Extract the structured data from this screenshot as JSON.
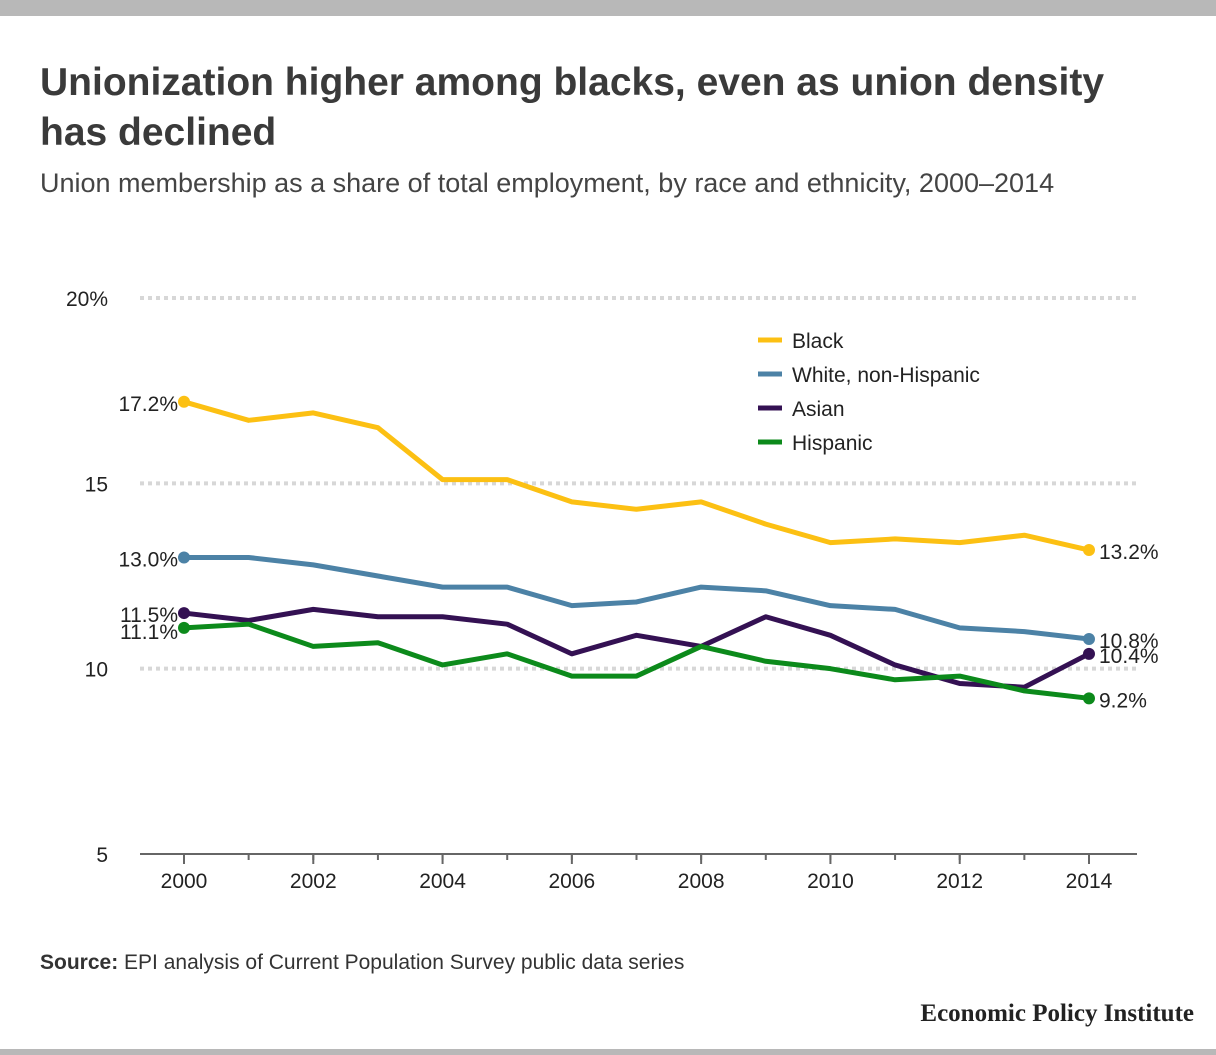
{
  "title": "Unionization higher among blacks, even as union density has declined",
  "subtitle": "Union membership as a share of total employment, by race and ethnicity, 2000–2014",
  "source_label": "Source:",
  "source_text": "EPI analysis of Current Population Survey public data series",
  "brand": "Economic Policy Institute",
  "chart_data": {
    "type": "line",
    "title": "Unionization higher among blacks, even as union density has declined",
    "subtitle": "Union membership as a share of total employment, by race and ethnicity, 2000–2014",
    "x": [
      2000,
      2001,
      2002,
      2003,
      2004,
      2005,
      2006,
      2007,
      2008,
      2009,
      2010,
      2011,
      2012,
      2013,
      2014
    ],
    "xlim": [
      2000,
      2014
    ],
    "x_ticks": [
      "2000",
      "2002",
      "2004",
      "2006",
      "2008",
      "2010",
      "2012",
      "2014"
    ],
    "ylim": [
      5,
      20
    ],
    "y_ticks": [
      {
        "value": 5,
        "label": "5"
      },
      {
        "value": 10,
        "label": "10"
      },
      {
        "value": 15,
        "label": "15"
      },
      {
        "value": 20,
        "label": "20%"
      }
    ],
    "grid": true,
    "legend_position": "top-right",
    "series": [
      {
        "name": "Black",
        "color": "#fcc013",
        "values": [
          17.2,
          16.7,
          16.9,
          16.5,
          15.1,
          15.1,
          14.5,
          14.3,
          14.5,
          13.9,
          13.4,
          13.5,
          13.4,
          13.6,
          13.2
        ],
        "start_label": "17.2%",
        "end_label": "13.2%"
      },
      {
        "name": "White, non-Hispanic",
        "color": "#4c82a6",
        "values": [
          13.0,
          13.0,
          12.8,
          12.5,
          12.2,
          12.2,
          11.7,
          11.8,
          12.2,
          12.1,
          11.7,
          11.6,
          11.1,
          11.0,
          10.8
        ],
        "start_label": "13.0%",
        "end_label": "10.8%"
      },
      {
        "name": "Asian",
        "color": "#341153",
        "values": [
          11.5,
          11.3,
          11.6,
          11.4,
          11.4,
          11.2,
          10.4,
          10.9,
          10.6,
          11.4,
          10.9,
          10.1,
          9.6,
          9.5,
          10.4
        ],
        "start_label": "11.5%",
        "end_label": "10.4%"
      },
      {
        "name": "Hispanic",
        "color": "#0c8a1b",
        "values": [
          11.1,
          11.2,
          10.6,
          10.7,
          10.1,
          10.4,
          9.8,
          9.8,
          10.6,
          10.2,
          10.0,
          9.7,
          9.8,
          9.4,
          9.2
        ],
        "start_label": "11.1%",
        "end_label": "9.2%"
      }
    ]
  }
}
